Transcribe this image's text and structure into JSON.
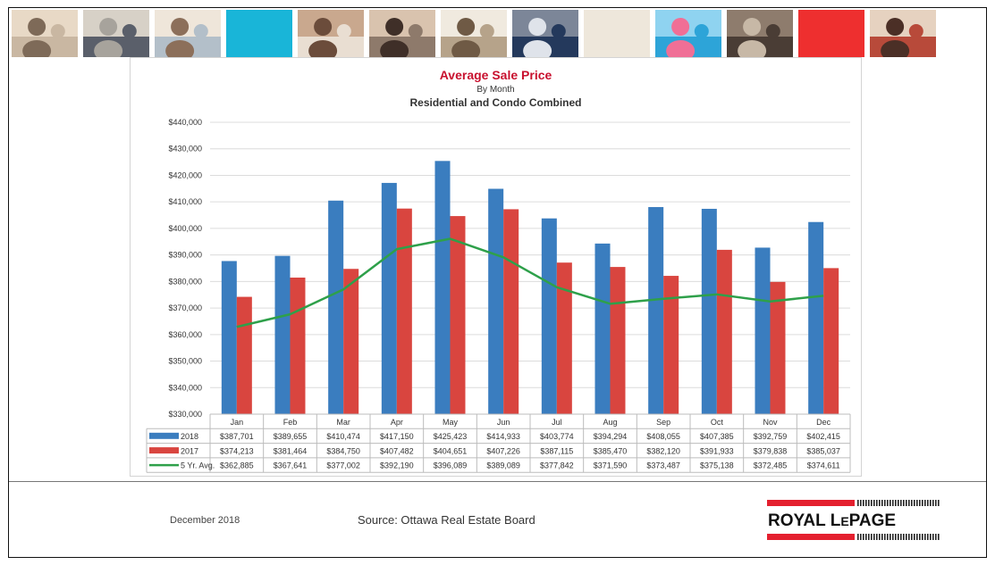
{
  "header": {
    "photos": [
      {
        "icon": "family-photo"
      },
      {
        "icon": "phone-hands-photo"
      },
      {
        "icon": "couple-photo"
      },
      {
        "color": "#19b5d8"
      },
      {
        "icon": "woman-phone-photo"
      },
      {
        "icon": "smiling-couple-photo"
      },
      {
        "icon": "house-photo"
      },
      {
        "icon": "hand-keyboard-photo"
      },
      {
        "color": "#eee7db"
      },
      {
        "icon": "pool-photo"
      },
      {
        "icon": "meeting-photo"
      },
      {
        "color": "#ee2f2f"
      },
      {
        "icon": "parent-child-photo"
      }
    ]
  },
  "chart_data": {
    "type": "bar",
    "title": "Average Sale Price",
    "subtitle": "By Month",
    "subtitle2": "Residential and Condo Combined",
    "categories": [
      "Jan",
      "Feb",
      "Mar",
      "Apr",
      "May",
      "Jun",
      "Jul",
      "Aug",
      "Sep",
      "Oct",
      "Nov",
      "Dec"
    ],
    "series": [
      {
        "name": "2018",
        "type": "bar",
        "color": "#3a7dbf",
        "values": [
          387701,
          389655,
          410474,
          417150,
          425423,
          414933,
          403774,
          394294,
          408055,
          407385,
          392759,
          402415
        ],
        "labels": [
          "$387,701",
          "$389,655",
          "$410,474",
          "$417,150",
          "$425,423",
          "$414,933",
          "$403,774",
          "$394,294",
          "$408,055",
          "$407,385",
          "$392,759",
          "$402,415"
        ]
      },
      {
        "name": "2017",
        "type": "bar",
        "color": "#d9453f",
        "values": [
          374213,
          381464,
          384750,
          407482,
          404651,
          407226,
          387115,
          385470,
          382120,
          391933,
          379838,
          385037
        ],
        "labels": [
          "$374,213",
          "$381,464",
          "$384,750",
          "$407,482",
          "$404,651",
          "$407,226",
          "$387,115",
          "$385,470",
          "$382,120",
          "$391,933",
          "$379,838",
          "$385,037"
        ]
      },
      {
        "name": "5 Yr. Avg.",
        "type": "line",
        "color": "#2ea04a",
        "values": [
          362885,
          367641,
          377002,
          392190,
          396089,
          389089,
          377842,
          371590,
          373487,
          375138,
          372485,
          374611
        ],
        "labels": [
          "$362,885",
          "$367,641",
          "$377,002",
          "$392,190",
          "$396,089",
          "$389,089",
          "$377,842",
          "$371,590",
          "$373,487",
          "$375,138",
          "$372,485",
          "$374,611"
        ]
      }
    ],
    "ylim": [
      330000,
      440000
    ],
    "yticks": [
      330000,
      340000,
      350000,
      360000,
      370000,
      380000,
      390000,
      400000,
      410000,
      420000,
      430000,
      440000
    ],
    "ytick_labels": [
      "$330,000",
      "$340,000",
      "$350,000",
      "$360,000",
      "$370,000",
      "$380,000",
      "$390,000",
      "$400,000",
      "$410,000",
      "$420,000",
      "$430,000",
      "$440,000"
    ],
    "grid": true,
    "legend": "data-table"
  },
  "footer": {
    "date": "December 2018",
    "source": "Source: Ottawa Real Estate Board",
    "logo_text": "ROYAL LEPAGE",
    "logo_color": "#e4202f"
  }
}
